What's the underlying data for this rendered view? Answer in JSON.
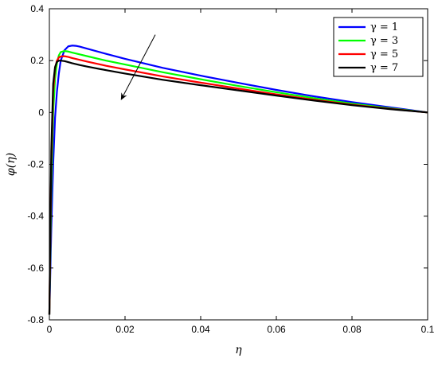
{
  "chart_data": {
    "type": "line",
    "xlabel": "η",
    "ylabel": "φ(η)",
    "xlim": [
      0,
      0.1
    ],
    "ylim": [
      -0.8,
      0.4
    ],
    "xticks": [
      0,
      0.02,
      0.04,
      0.06,
      0.08,
      0.1
    ],
    "xtick_labels": [
      "0",
      "0.02",
      "0.04",
      "0.06",
      "0.08",
      "0.1"
    ],
    "yticks": [
      -0.8,
      -0.6,
      -0.4,
      -0.2,
      0,
      0.2,
      0.4
    ],
    "ytick_labels": [
      "-0.8",
      "-0.6",
      "-0.4",
      "-0.2",
      "0",
      "0.2",
      "0.4"
    ],
    "grid": false,
    "legend_position": "top-right",
    "annotation": "arrow indicating decreasing φ with increasing γ",
    "series": [
      {
        "name": "γ = 1",
        "color": "#0000ff",
        "x": [
          0,
          0.0005,
          0.001,
          0.0015,
          0.002,
          0.0025,
          0.003,
          0.004,
          0.005,
          0.006,
          0.007,
          0.008,
          0.01,
          0.015,
          0.02,
          0.03,
          0.04,
          0.05,
          0.06,
          0.07,
          0.08,
          0.09,
          0.1
        ],
        "values": [
          -0.78,
          -0.45,
          -0.2,
          -0.02,
          0.08,
          0.15,
          0.2,
          0.24,
          0.255,
          0.258,
          0.257,
          0.254,
          0.246,
          0.226,
          0.207,
          0.172,
          0.142,
          0.114,
          0.087,
          0.062,
          0.04,
          0.02,
          0.0
        ]
      },
      {
        "name": "γ = 3",
        "color": "#00ff00",
        "x": [
          0,
          0.0005,
          0.001,
          0.0015,
          0.002,
          0.0025,
          0.003,
          0.004,
          0.005,
          0.006,
          0.008,
          0.01,
          0.015,
          0.02,
          0.03,
          0.04,
          0.05,
          0.06,
          0.07,
          0.08,
          0.09,
          0.1
        ],
        "values": [
          -0.78,
          -0.3,
          0.0,
          0.13,
          0.19,
          0.22,
          0.233,
          0.237,
          0.235,
          0.231,
          0.224,
          0.217,
          0.2,
          0.185,
          0.155,
          0.128,
          0.102,
          0.078,
          0.055,
          0.034,
          0.016,
          0.0
        ]
      },
      {
        "name": "γ = 5",
        "color": "#ff0000",
        "x": [
          0,
          0.0005,
          0.001,
          0.0015,
          0.002,
          0.0025,
          0.003,
          0.004,
          0.005,
          0.006,
          0.008,
          0.01,
          0.015,
          0.02,
          0.03,
          0.04,
          0.05,
          0.06,
          0.07,
          0.08,
          0.09,
          0.1
        ],
        "values": [
          -0.78,
          -0.2,
          0.08,
          0.17,
          0.2,
          0.212,
          0.216,
          0.217,
          0.214,
          0.21,
          0.203,
          0.196,
          0.18,
          0.166,
          0.139,
          0.115,
          0.092,
          0.07,
          0.049,
          0.03,
          0.014,
          0.0
        ]
      },
      {
        "name": "γ = 7",
        "color": "#000000",
        "x": [
          0,
          0.0005,
          0.001,
          0.0015,
          0.002,
          0.0025,
          0.003,
          0.004,
          0.005,
          0.006,
          0.008,
          0.01,
          0.015,
          0.02,
          0.03,
          0.04,
          0.05,
          0.06,
          0.07,
          0.08,
          0.09,
          0.1
        ],
        "values": [
          -0.78,
          -0.15,
          0.11,
          0.175,
          0.195,
          0.2,
          0.2,
          0.198,
          0.194,
          0.19,
          0.183,
          0.177,
          0.163,
          0.15,
          0.126,
          0.105,
          0.085,
          0.065,
          0.046,
          0.028,
          0.013,
          0.0
        ]
      }
    ],
    "arrow": {
      "from": [
        0.028,
        0.3
      ],
      "to": [
        0.019,
        0.05
      ]
    }
  }
}
